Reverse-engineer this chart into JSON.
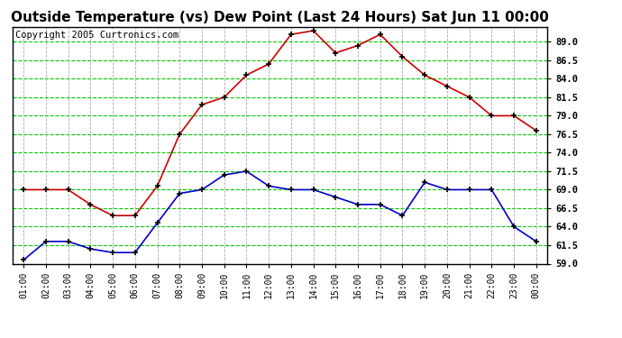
{
  "title": "Outside Temperature (vs) Dew Point (Last 24 Hours) Sat Jun 11 00:00",
  "copyright": "Copyright 2005 Curtronics.com",
  "background_color": "#ffffff",
  "plot_bg_color": "#ffffff",
  "grid_color_h": "#00cc00",
  "grid_color_v": "#aaaaaa",
  "x_labels": [
    "01:00",
    "02:00",
    "03:00",
    "04:00",
    "05:00",
    "06:00",
    "07:00",
    "08:00",
    "09:00",
    "10:00",
    "11:00",
    "12:00",
    "13:00",
    "14:00",
    "15:00",
    "16:00",
    "17:00",
    "18:00",
    "19:00",
    "20:00",
    "21:00",
    "22:00",
    "23:00",
    "00:00"
  ],
  "temp_values": [
    69.0,
    69.0,
    69.0,
    67.0,
    65.5,
    65.5,
    69.5,
    76.5,
    80.5,
    81.5,
    84.5,
    86.0,
    90.0,
    90.5,
    87.5,
    88.5,
    90.0,
    87.0,
    84.5,
    83.0,
    81.5,
    79.0,
    79.0,
    77.0
  ],
  "dew_values": [
    59.5,
    62.0,
    62.0,
    61.0,
    60.5,
    60.5,
    64.5,
    68.5,
    69.0,
    71.0,
    71.5,
    69.5,
    69.0,
    69.0,
    68.0,
    67.0,
    67.0,
    65.5,
    70.0,
    69.0,
    69.0,
    69.0,
    64.0,
    62.0
  ],
  "temp_color": "#cc0000",
  "dew_color": "#0000cc",
  "ylim": [
    59.0,
    91.0
  ],
  "yticks": [
    59.0,
    61.5,
    64.0,
    66.5,
    69.0,
    71.5,
    74.0,
    76.5,
    79.0,
    81.5,
    84.0,
    86.5,
    89.0
  ],
  "title_fontsize": 11,
  "copyright_fontsize": 7.5
}
